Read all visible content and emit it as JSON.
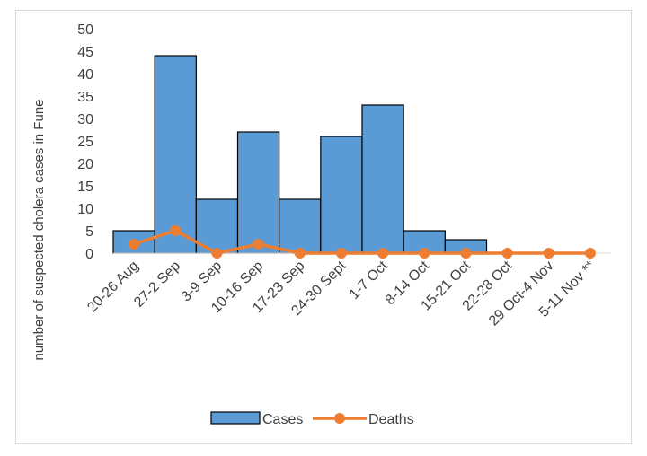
{
  "chart_data": {
    "type": "bar",
    "categories": [
      "20-26 Aug",
      "27-2 Sep",
      "3-9 Sep",
      "10-16 Sep",
      "17-23 Sep",
      "24-30 Sept",
      "1-7 Oct",
      "8-14 Oct",
      "15-21 Oct",
      "22-28 Oct",
      "29 Oct-4 Nov",
      "5-11 Nov **"
    ],
    "series": [
      {
        "name": "Cases",
        "type": "bar",
        "color": "#5b9bd5",
        "values": [
          5,
          44,
          12,
          27,
          12,
          26,
          33,
          5,
          3,
          0,
          0,
          0
        ]
      },
      {
        "name": "Deaths",
        "type": "line",
        "color": "#ed7d31",
        "values": [
          2,
          5,
          0,
          2,
          0,
          0,
          0,
          0,
          0,
          0,
          0,
          0
        ]
      }
    ],
    "ylabel": "number of suspected cholera cases in Fune",
    "xlabel": "",
    "ylim": [
      0,
      50
    ],
    "yticks": [
      0,
      5,
      10,
      15,
      20,
      25,
      30,
      35,
      40,
      45,
      50
    ],
    "grid": false,
    "legend": "bottom"
  }
}
